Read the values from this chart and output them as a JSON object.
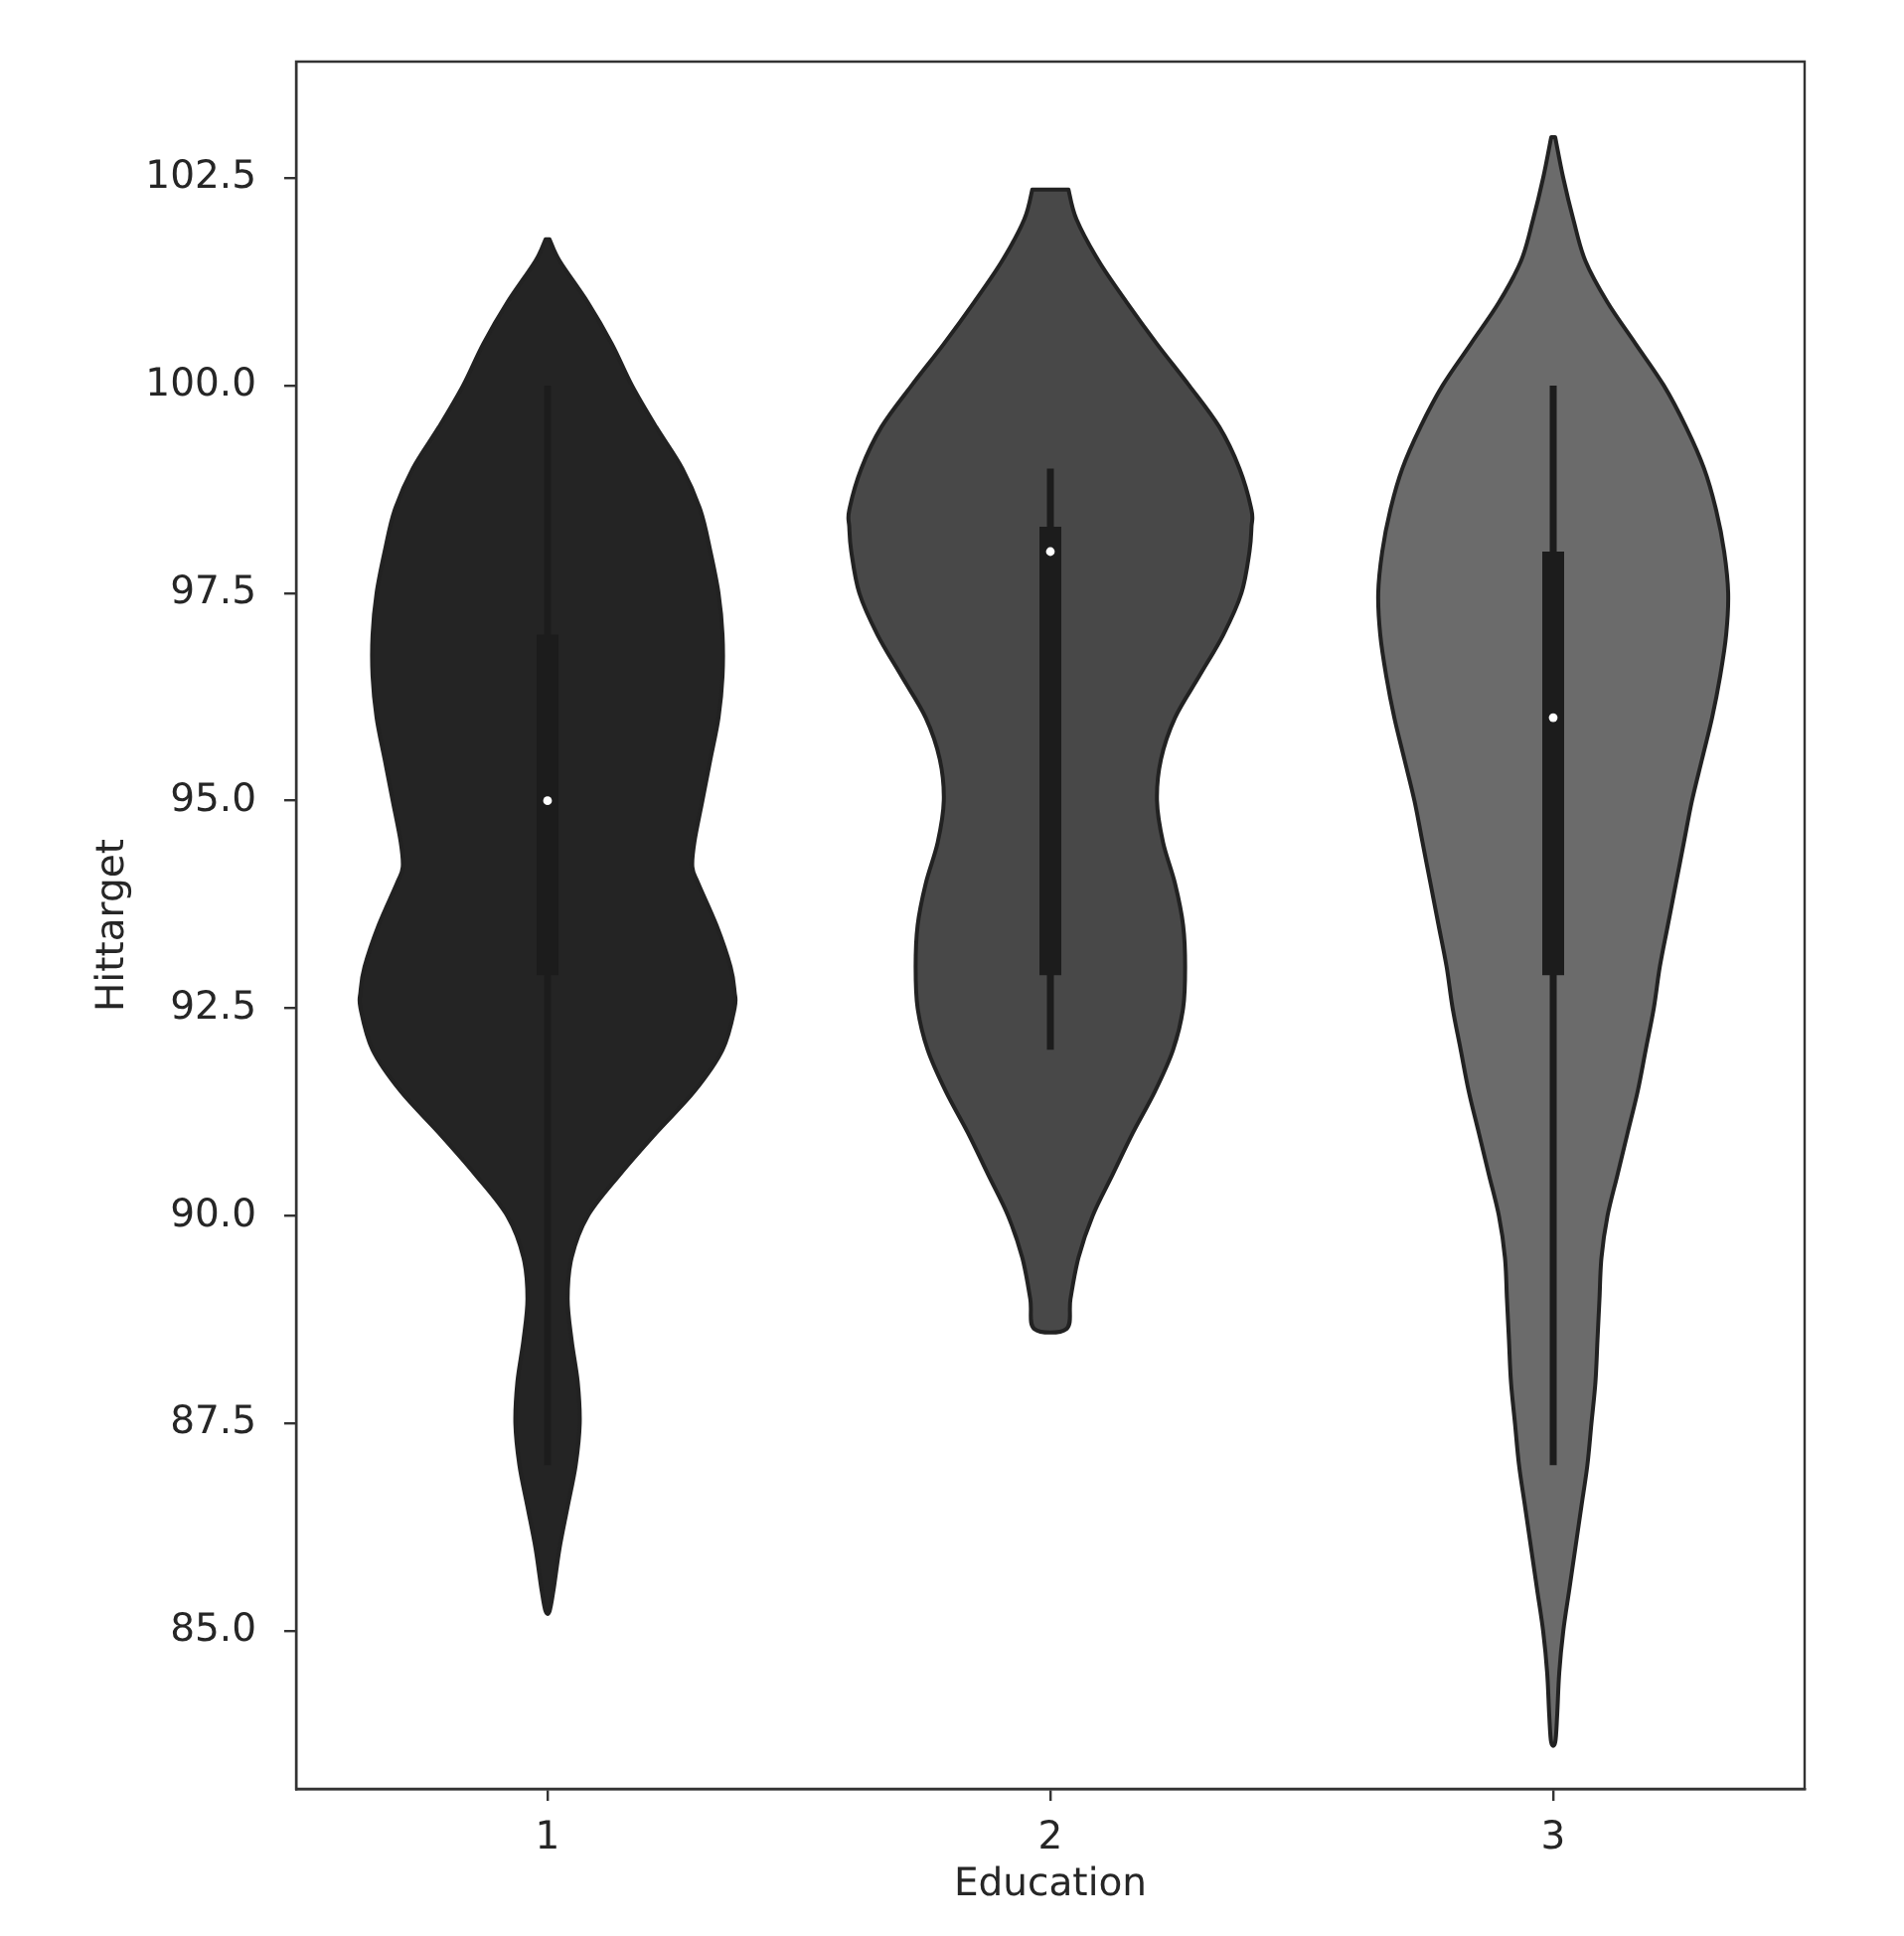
{
  "chart_data": {
    "type": "box",
    "xlabel": "Education",
    "ylabel": "Hittarget",
    "categories": [
      "1",
      "2",
      "3"
    ],
    "color": "#1c1c1c",
    "boxes": [
      {
        "low": 87,
        "q1": 92.9,
        "median": 95,
        "q3": 97,
        "high": 100
      },
      {
        "low": 92,
        "q1": 92.9,
        "median": 98,
        "q3": 98.3,
        "high": 99
      },
      {
        "low": 87,
        "q1": 92.9,
        "median": 96,
        "q3": 98,
        "high": 100
      }
    ],
    "ylim": [
      83.1,
      103.9
    ],
    "yticks": [
      {
        "value": 85,
        "label": "85.0"
      },
      87.5,
      {
        "value": 90,
        "label": "90.0"
      },
      92.5,
      {
        "value": 95,
        "label": "95.0"
      },
      97.5,
      {
        "value": 100,
        "label": "100.0"
      },
      102.5
    ],
    "grid": false,
    "legend": false
  }
}
